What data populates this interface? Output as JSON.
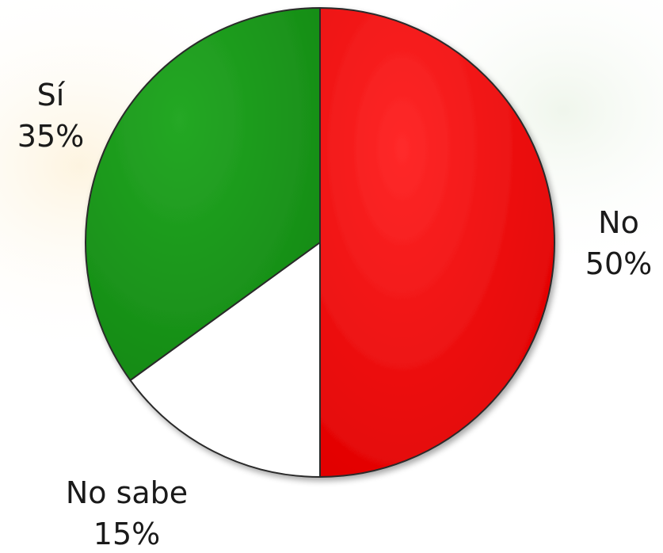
{
  "chart_data": {
    "type": "pie",
    "title": "",
    "slices": [
      {
        "label": "No",
        "value": 50,
        "percent_label": "50%",
        "color": "#ff0a0a"
      },
      {
        "label": "No sabe",
        "value": 15,
        "percent_label": "15%",
        "color": "#ffffff"
      },
      {
        "label": "Sí",
        "value": 35,
        "percent_label": "35%",
        "color": "#1d9a1d"
      }
    ],
    "start_angle_deg": 0,
    "direction": "clockwise",
    "legend": "none",
    "data_labels": "outside"
  }
}
